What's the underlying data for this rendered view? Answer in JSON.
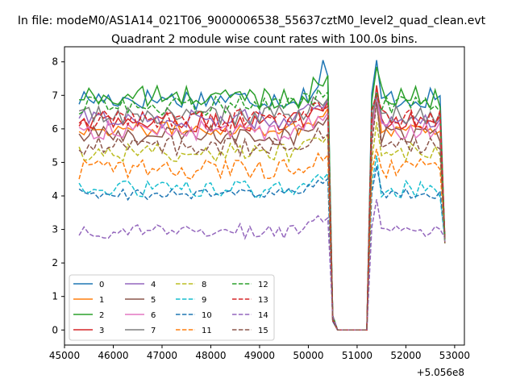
{
  "suptitle": "In file: modeM0/AS1A14_021T06_9000006538_55637cztM0_level2_quad_clean.evt",
  "chart_data": {
    "type": "line",
    "title": "Quadrant 2 module wise count rates with 100.0s bins.",
    "xlabel": "",
    "ylabel": "",
    "x_offset_label": "+5.056e8",
    "xlim": [
      45000,
      53200
    ],
    "ylim": [
      -0.45,
      8.45
    ],
    "xticks": [
      45000,
      46000,
      47000,
      48000,
      49000,
      50000,
      51000,
      52000,
      53000
    ],
    "xtick_labels": [
      "45000",
      "46000",
      "47000",
      "48000",
      "49000",
      "50000",
      "51000",
      "52000",
      "53000"
    ],
    "yticks": [
      0,
      1,
      2,
      3,
      4,
      5,
      6,
      7,
      8
    ],
    "ytick_labels": [
      "0",
      "1",
      "2",
      "3",
      "4",
      "5",
      "6",
      "7",
      "8"
    ],
    "grid": false,
    "legend_position": "lower-left",
    "legend_columns": 4,
    "gap": {
      "start": 50600,
      "end": 51200,
      "edge_down": 50500,
      "edge_up": 51400
    },
    "x_range": [
      45300,
      52800,
      100
    ],
    "series": [
      {
        "name": "0",
        "color": "#1f77b4",
        "dash": "solid",
        "level": 6.9,
        "noise": 0.32,
        "peak": 8.05
      },
      {
        "name": "1",
        "color": "#ff7f0e",
        "dash": "solid",
        "level": 6.0,
        "noise": 0.22,
        "peak": 7.2
      },
      {
        "name": "2",
        "color": "#2ca02c",
        "dash": "solid",
        "level": 6.95,
        "noise": 0.35,
        "peak": 7.85
      },
      {
        "name": "3",
        "color": "#d62728",
        "dash": "solid",
        "level": 6.2,
        "noise": 0.3,
        "peak": 7.3
      },
      {
        "name": "4",
        "color": "#9467bd",
        "dash": "solid",
        "level": 6.3,
        "noise": 0.3,
        "peak": 7.1
      },
      {
        "name": "5",
        "color": "#8c564b",
        "dash": "solid",
        "level": 5.8,
        "noise": 0.3,
        "peak": 6.8
      },
      {
        "name": "6",
        "color": "#e377c2",
        "dash": "solid",
        "level": 5.95,
        "noise": 0.3,
        "peak": 6.9
      },
      {
        "name": "7",
        "color": "#7f7f7f",
        "dash": "solid",
        "level": 6.4,
        "noise": 0.3,
        "peak": 7.0
      },
      {
        "name": "8",
        "color": "#bcbd22",
        "dash": "dashed",
        "level": 5.3,
        "noise": 0.28,
        "peak": 6.2
      },
      {
        "name": "9",
        "color": "#17becf",
        "dash": "dashed",
        "level": 4.2,
        "noise": 0.25,
        "peak": 5.2
      },
      {
        "name": "10",
        "color": "#1f77b4",
        "dash": "dashed",
        "level": 4.05,
        "noise": 0.18,
        "peak": 4.9
      },
      {
        "name": "11",
        "color": "#ff7f0e",
        "dash": "dashed",
        "level": 4.8,
        "noise": 0.3,
        "peak": 5.4
      },
      {
        "name": "12",
        "color": "#2ca02c",
        "dash": "dashed",
        "level": 6.7,
        "noise": 0.3,
        "peak": 7.1
      },
      {
        "name": "13",
        "color": "#d62728",
        "dash": "dashed",
        "level": 6.3,
        "noise": 0.3,
        "peak": 7.0
      },
      {
        "name": "14",
        "color": "#9467bd",
        "dash": "dashed",
        "level": 2.95,
        "noise": 0.22,
        "peak": 3.9
      },
      {
        "name": "15",
        "color": "#8c564b",
        "dash": "dashed",
        "level": 5.5,
        "noise": 0.3,
        "peak": 6.8
      }
    ]
  }
}
